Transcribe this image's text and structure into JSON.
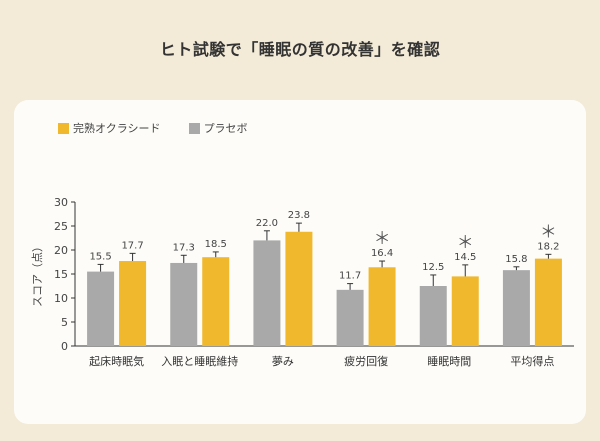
{
  "title": "ヒト試験で「睡眠の質の改善」を確認",
  "chart_data": {
    "type": "bar",
    "ylabel": "スコア（点）",
    "ylim": [
      0,
      30
    ],
    "yticks": [
      0,
      5,
      10,
      15,
      20,
      25,
      30
    ],
    "categories": [
      "起床時眠気",
      "入眠と睡眠維持",
      "夢み",
      "疲労回復",
      "睡眠時間",
      "平均得点"
    ],
    "series": [
      {
        "name": "プラセボ",
        "color": "#a9a9a9",
        "values": [
          15.5,
          17.3,
          22.0,
          11.7,
          12.5,
          15.8
        ],
        "labels": [
          "15.5",
          "17.3",
          "22.0",
          "11.7",
          "12.5",
          "15.8"
        ],
        "errors": [
          1.5,
          1.6,
          2.0,
          1.3,
          2.3,
          0.7
        ]
      },
      {
        "name": "完熟オクラシード",
        "color": "#f0b82c",
        "values": [
          17.7,
          18.5,
          23.8,
          16.4,
          14.5,
          18.2
        ],
        "labels": [
          "17.7",
          "18.5",
          "23.8",
          "16.4",
          "14.5",
          "18.2"
        ],
        "errors": [
          1.6,
          1.1,
          1.8,
          1.3,
          2.4,
          0.9
        ]
      }
    ],
    "significance": [
      false,
      false,
      false,
      true,
      true,
      true
    ],
    "significance_mark": "＊",
    "legend": {
      "position": "top-left",
      "order": [
        "完熟オクラシード",
        "プラセボ"
      ]
    },
    "grid": false
  }
}
